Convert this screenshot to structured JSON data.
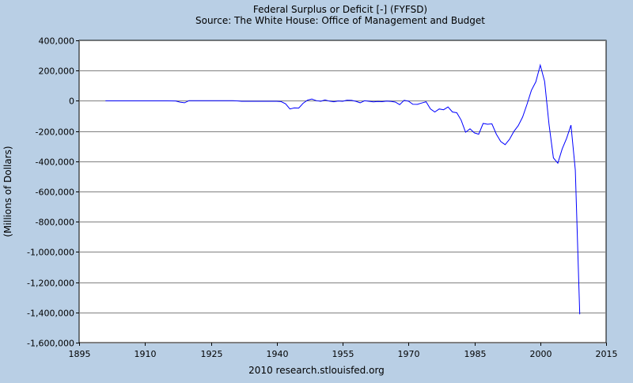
{
  "chart_data": {
    "type": "line",
    "title": "Federal Surplus or Deficit [-] (FYFSD)",
    "subtitle": "Source: The White House: Office of Management and Budget",
    "ylabel": "(Millions of Dollars)",
    "xlabel": "",
    "footer": "2010 research.stlouisfed.org",
    "xlim": [
      1895,
      2015
    ],
    "ylim": [
      -1600000,
      400000
    ],
    "x_ticks": [
      1895,
      1910,
      1925,
      1940,
      1955,
      1970,
      1985,
      2000,
      2015
    ],
    "y_ticks": [
      400000,
      200000,
      0,
      -200000,
      -400000,
      -600000,
      -800000,
      -1000000,
      -1200000,
      -1400000,
      -1600000
    ],
    "x_tick_labels": [
      "1895",
      "1910",
      "1925",
      "1940",
      "1955",
      "1970",
      "1985",
      "2000",
      "2015"
    ],
    "y_tick_labels": [
      "400,000",
      "200,000",
      "0",
      "-200,000",
      "-400,000",
      "-600,000",
      "-800,000",
      "-1,000,000",
      "-1,200,000",
      "-1,400,000",
      "-1,600,000"
    ],
    "grid": true,
    "line_color": "#0000ff",
    "plot_background": "#ffffff",
    "figure_background": "#b9cfe5",
    "series": [
      {
        "x": [
          1901,
          1905,
          1910,
          1915,
          1917,
          1918,
          1919,
          1920,
          1921,
          1922,
          1925,
          1928,
          1930,
          1931,
          1932,
          1935,
          1938,
          1940,
          1941,
          1942,
          1943,
          1944,
          1945,
          1946,
          1947,
          1948,
          1949,
          1950,
          1951,
          1952,
          1953,
          1954,
          1955,
          1956,
          1957,
          1958,
          1959,
          1960,
          1961,
          1962,
          1963,
          1964,
          1965,
          1966,
          1967,
          1968,
          1969,
          1970,
          1971,
          1972,
          1973,
          1974,
          1975,
          1976,
          1977,
          1978,
          1979,
          1980,
          1981,
          1982,
          1983,
          1984,
          1985,
          1986,
          1987,
          1988,
          1989,
          1990,
          1991,
          1992,
          1993,
          1994,
          1995,
          1996,
          1997,
          1998,
          1999,
          2000,
          2001,
          2002,
          2003,
          2004,
          2005,
          2006,
          2007,
          2008,
          2009
        ],
        "y": [
          0,
          0,
          0,
          0,
          -1000,
          -9000,
          -13000,
          1000,
          1000,
          1000,
          1000,
          1000,
          1000,
          -500,
          -3000,
          -3000,
          -3000,
          -3000,
          -5000,
          -20000,
          -54000,
          -47000,
          -48000,
          -16000,
          4000,
          12000,
          1000,
          -3000,
          6000,
          -2000,
          -6500,
          -1000,
          -3000,
          4000,
          3000,
          -3000,
          -13000,
          300,
          -3300,
          -7100,
          -4800,
          -5900,
          -1400,
          -3700,
          -8600,
          -25200,
          3200,
          -2800,
          -23000,
          -23400,
          -14900,
          -6100,
          -53200,
          -73700,
          -53700,
          -59200,
          -40700,
          -73800,
          -79000,
          -128000,
          -207800,
          -185400,
          -212300,
          -221200,
          -149700,
          -155200,
          -152600,
          -221000,
          -269200,
          -290300,
          -255100,
          -203200,
          -164000,
          -107400,
          -21900,
          69300,
          125600,
          236200,
          128200,
          -157800,
          -377600,
          -412700,
          -318300,
          -248200,
          -160700,
          -458600,
          -1412700
        ]
      }
    ]
  }
}
